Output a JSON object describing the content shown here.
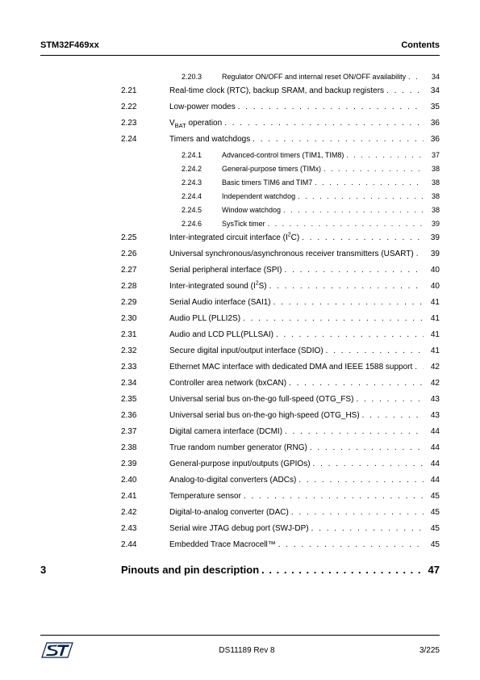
{
  "header": {
    "left": "STM32F469xx",
    "right": "Contents"
  },
  "footer": {
    "center": "DS11189 Rev 8",
    "right": "3/225"
  },
  "toc": {
    "subs_pre": [
      {
        "num": "2.20.3",
        "title": "Regulator ON/OFF and internal reset ON/OFF availability",
        "page": "34"
      }
    ],
    "sections": [
      {
        "num": "2.21",
        "title": "Real-time clock (RTC), backup SRAM, and backup registers",
        "page": "34",
        "subs": []
      },
      {
        "num": "2.22",
        "title": "Low-power modes",
        "page": "35",
        "subs": []
      },
      {
        "num": "2.23",
        "title_html": "V<sub>BAT</sub> operation",
        "page": "36",
        "subs": []
      },
      {
        "num": "2.24",
        "title": "Timers and watchdogs",
        "page": "36",
        "subs": [
          {
            "num": "2.24.1",
            "title": "Advanced-control timers (TIM1, TIM8)",
            "page": "37"
          },
          {
            "num": "2.24.2",
            "title": "General-purpose timers (TIMx)",
            "page": "38"
          },
          {
            "num": "2.24.3",
            "title": "Basic timers TIM6 and TIM7",
            "page": "38"
          },
          {
            "num": "2.24.4",
            "title": "Independent watchdog",
            "page": "38"
          },
          {
            "num": "2.24.5",
            "title": "Window watchdog",
            "page": "38"
          },
          {
            "num": "2.24.6",
            "title": "SysTick timer",
            "page": "39"
          }
        ]
      },
      {
        "num": "2.25",
        "title_html": "Inter-integrated circuit interface (I<sup>2</sup>C)",
        "page": "39",
        "subs": []
      },
      {
        "num": "2.26",
        "title": "Universal synchronous/asynchronous receiver transmitters (USART)",
        "page": "39",
        "subs": []
      },
      {
        "num": "2.27",
        "title": "Serial peripheral interface (SPI)",
        "page": "40",
        "subs": []
      },
      {
        "num": "2.28",
        "title_html": "Inter-integrated sound (I<sup>2</sup>S)",
        "page": "40",
        "subs": []
      },
      {
        "num": "2.29",
        "title": "Serial Audio interface (SAI1)",
        "page": "41",
        "subs": []
      },
      {
        "num": "2.30",
        "title": "Audio PLL (PLLI2S)",
        "page": "41",
        "subs": []
      },
      {
        "num": "2.31",
        "title": "Audio and LCD PLL(PLLSAI)",
        "page": "41",
        "subs": []
      },
      {
        "num": "2.32",
        "title": "Secure digital input/output interface (SDIO)",
        "page": "41",
        "subs": []
      },
      {
        "num": "2.33",
        "title": "Ethernet MAC interface with dedicated DMA and IEEE 1588 support",
        "page": "42",
        "subs": []
      },
      {
        "num": "2.34",
        "title": "Controller area network (bxCAN)",
        "page": "42",
        "subs": []
      },
      {
        "num": "2.35",
        "title": "Universal serial bus on-the-go full-speed (OTG_FS)",
        "page": "43",
        "subs": []
      },
      {
        "num": "2.36",
        "title": "Universal serial bus on-the-go high-speed (OTG_HS)",
        "page": "43",
        "subs": []
      },
      {
        "num": "2.37",
        "title": "Digital camera interface (DCMI)",
        "page": "44",
        "subs": []
      },
      {
        "num": "2.38",
        "title": "True random number generator (RNG)",
        "page": "44",
        "subs": []
      },
      {
        "num": "2.39",
        "title": "General-purpose input/outputs (GPIOs)",
        "page": "44",
        "subs": []
      },
      {
        "num": "2.40",
        "title": "Analog-to-digital converters (ADCs)",
        "page": "44",
        "subs": []
      },
      {
        "num": "2.41",
        "title": "Temperature sensor",
        "page": "45",
        "subs": []
      },
      {
        "num": "2.42",
        "title": "Digital-to-analog converter (DAC)",
        "page": "45",
        "subs": []
      },
      {
        "num": "2.43",
        "title": "Serial wire JTAG debug port (SWJ-DP)",
        "page": "45",
        "subs": []
      },
      {
        "num": "2.44",
        "title": "Embedded Trace Macrocell™",
        "page": "45",
        "subs": []
      }
    ],
    "chapter": {
      "num": "3",
      "title": "Pinouts and pin description",
      "page": "47"
    }
  },
  "colors": {
    "text": "#000000",
    "background": "#ffffff",
    "logo_blue": "#03234b",
    "rule": "#000000"
  },
  "typography": {
    "header_fontsize": 11,
    "section_fontsize": 10,
    "sub_fontsize": 9,
    "chapter_fontsize": 13,
    "footer_fontsize": 10
  }
}
